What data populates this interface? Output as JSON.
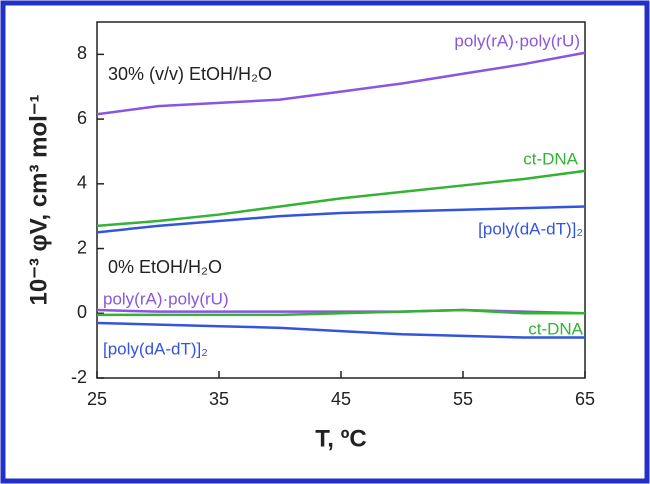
{
  "chart_data": {
    "type": "line",
    "y_label": "10⁻³ φV, cm³ mol⁻¹",
    "x_label": "T, ºC",
    "annotations": [
      "30% (v/v) EtOH/H₂O",
      "0%  EtOH/H₂O"
    ],
    "x": [
      25,
      30,
      35,
      40,
      45,
      50,
      55,
      60,
      65
    ],
    "series": [
      {
        "name": "poly(rA)·poly(rU)",
        "color": "#8a55e0",
        "values": [
          6.15,
          6.4,
          6.5,
          6.6,
          6.85,
          7.1,
          7.4,
          7.7,
          8.05
        ]
      },
      {
        "name": "ct-DNA",
        "color": "#33b233",
        "values": [
          2.7,
          2.85,
          3.05,
          3.3,
          3.55,
          3.75,
          3.95,
          4.15,
          4.4
        ]
      },
      {
        "name": "[poly(dA-dT)]₂",
        "color": "#3355dd",
        "values": [
          2.5,
          2.7,
          2.85,
          3.0,
          3.1,
          3.15,
          3.2,
          3.25,
          3.3
        ]
      },
      {
        "name": "poly(rA)·poly(rU)",
        "color": "#8a55e0",
        "values": [
          0.1,
          0.05,
          0.05,
          0.05,
          0.05,
          0.05,
          0.1,
          0.05,
          0.0
        ]
      },
      {
        "name": "ct-DNA",
        "color": "#33b233",
        "values": [
          -0.05,
          -0.05,
          -0.05,
          -0.05,
          0.0,
          0.05,
          0.1,
          0.0,
          0.0
        ]
      },
      {
        "name": "[poly(dA-dT)]₂",
        "color": "#3355dd",
        "values": [
          -0.3,
          -0.35,
          -0.4,
          -0.45,
          -0.55,
          -0.65,
          -0.7,
          -0.75,
          -0.75
        ]
      }
    ],
    "xlim": [
      25,
      65
    ],
    "ylim": [
      -2,
      9
    ],
    "xticks": [
      25,
      35,
      45,
      55,
      65
    ],
    "yticks": [
      -2,
      0,
      2,
      4,
      6,
      8
    ],
    "grid": false
  }
}
